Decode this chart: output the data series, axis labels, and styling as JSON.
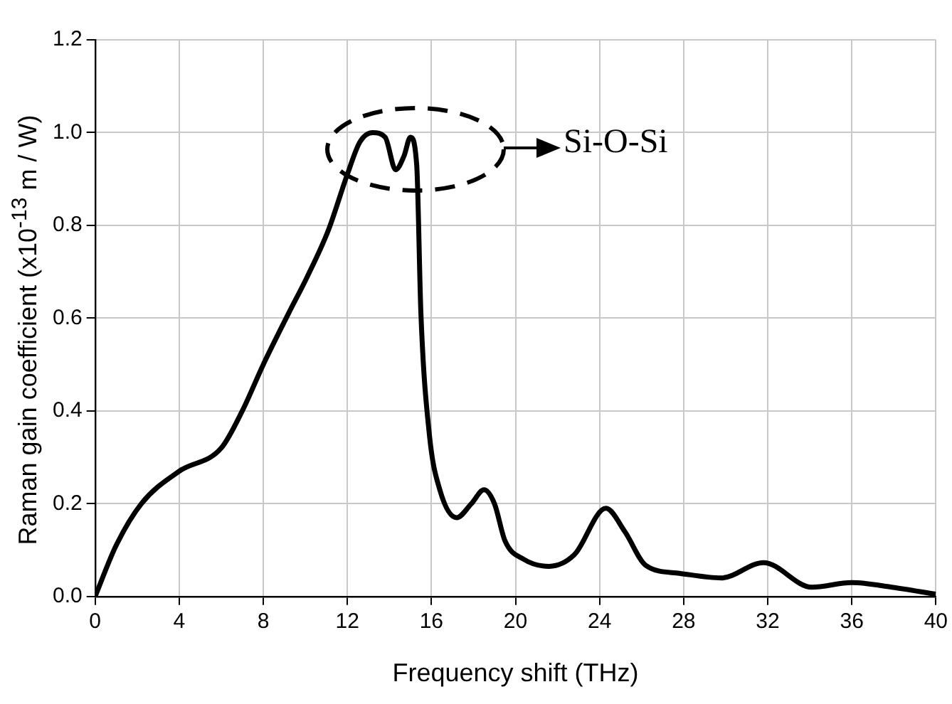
{
  "chart_data": {
    "type": "line",
    "xlabel": "Frequency shift (THz)",
    "ylabel": "Raman gain coefficient (x10$^{-13}$ m / W)",
    "x": [
      0,
      1.0,
      2.2,
      4.0,
      6.0,
      7.0,
      8.0,
      9.2,
      10.1,
      11.1,
      12.0,
      12.6,
      13.2,
      13.8,
      14.3,
      14.7,
      15.0,
      15.3,
      15.5,
      15.9,
      16.4,
      17.2,
      17.9,
      18.5,
      19.0,
      19.5,
      20.4,
      21.6,
      22.8,
      24.3,
      25.2,
      26.2,
      27.8,
      29.8,
      31.8,
      34.1,
      36.0,
      37.9,
      40
    ],
    "series": [
      {
        "color": "#000000",
        "values": [
          0,
          0.11,
          0.2,
          0.27,
          0.32,
          0.4,
          0.5,
          0.61,
          0.69,
          0.79,
          0.91,
          0.98,
          1.0,
          0.99,
          0.92,
          0.95,
          0.99,
          0.93,
          0.61,
          0.35,
          0.23,
          0.17,
          0.2,
          0.23,
          0.2,
          0.12,
          0.08,
          0.065,
          0.09,
          0.19,
          0.14,
          0.067,
          0.05,
          0.04,
          0.073,
          0.02,
          0.03,
          0.02,
          0.005
        ]
      }
    ],
    "xlim": [
      0,
      40
    ],
    "xticks": [
      0,
      4,
      8,
      12,
      16,
      20,
      24,
      28,
      32,
      36,
      40
    ],
    "ylim": [
      0,
      1.2
    ],
    "yticks": [
      {
        "value": 0,
        "label": "0.0"
      },
      {
        "value": 0.2,
        "label": "0.2"
      },
      {
        "value": 0.4,
        "label": "0.4"
      },
      {
        "value": 0.6,
        "label": "0.6"
      },
      {
        "value": 0.8,
        "label": "0.8"
      },
      {
        "value": 1.0,
        "label": "1.0"
      },
      {
        "value": 1.2,
        "label": "1.2"
      }
    ],
    "grid": true,
    "legend": false,
    "marker": "none",
    "line_style": "solid",
    "annotations": [
      "Si-O-Si"
    ]
  }
}
